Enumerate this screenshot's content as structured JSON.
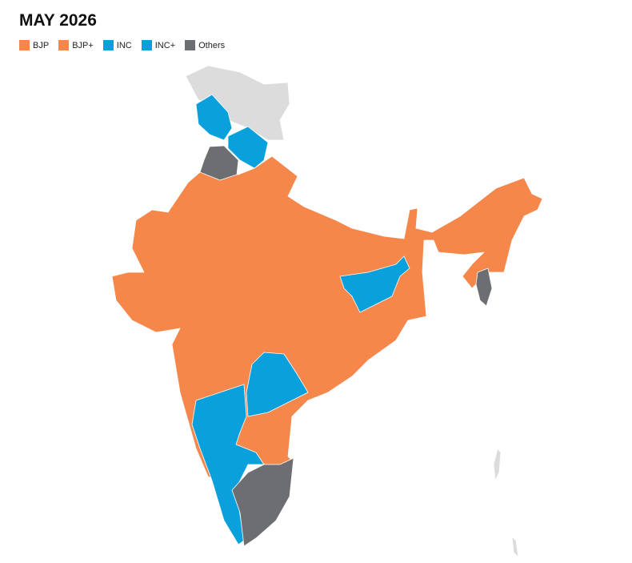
{
  "title": "MAY 2026",
  "legend": [
    {
      "label": "BJP",
      "color": "#f5874a"
    },
    {
      "label": "BJP+",
      "color": "#f5874a"
    },
    {
      "label": "INC",
      "color": "#0aa0dc"
    },
    {
      "label": "INC+",
      "color": "#0aa0dc"
    },
    {
      "label": "Others",
      "color": "#6d6e71"
    }
  ]
}
